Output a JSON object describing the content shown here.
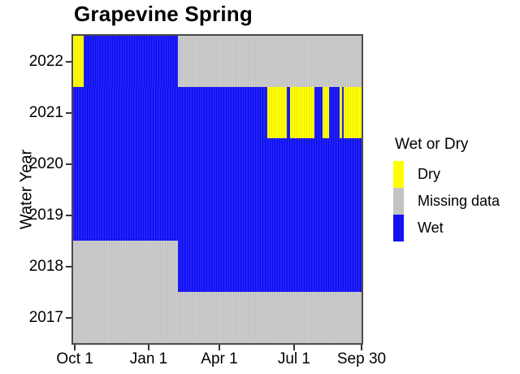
{
  "title": "Grapevine Spring",
  "y_axis": {
    "title": "Water Year",
    "ticks": [
      "2022",
      "2021",
      "2020",
      "2019",
      "2018",
      "2017"
    ]
  },
  "x_axis": {
    "ticks": [
      {
        "label": "Oct 1",
        "pos_pct": 0.6
      },
      {
        "label": "Jan 1",
        "pos_pct": 26.2
      },
      {
        "label": "Apr 1",
        "pos_pct": 50.7
      },
      {
        "label": "Jul 1",
        "pos_pct": 76.6
      },
      {
        "label": "Sep 30",
        "pos_pct": 100
      }
    ]
  },
  "legend": {
    "title": "Wet or Dry",
    "items": [
      {
        "label": "Dry",
        "color": "#FFFF00"
      },
      {
        "label": "Missing data",
        "color": "#C3C3C3"
      },
      {
        "label": "Wet",
        "color": "#1212F0"
      }
    ]
  },
  "chart_data": {
    "type": "heatmap",
    "title": "Grapevine Spring",
    "xlabel_ticks": [
      "Oct 1",
      "Jan 1",
      "Apr 1",
      "Jul 1",
      "Sep 30"
    ],
    "ylabel": "Water Year",
    "categories": [
      "2022",
      "2021",
      "2020",
      "2019",
      "2018",
      "2017"
    ],
    "legend_position": "right",
    "status_colors": {
      "Dry": "#FFFF00",
      "Missing data": "#C3C3C3",
      "Wet": "#1212F0"
    },
    "rows": [
      {
        "year": "2022",
        "segments": [
          {
            "status": "Dry",
            "from_pct": 0,
            "to_pct": 3.8,
            "approx_start": "Oct 1",
            "approx_end": "Oct 12"
          },
          {
            "status": "Wet",
            "from_pct": 3.8,
            "to_pct": 36.2,
            "approx_start": "Oct 12",
            "approx_end": "Feb 6"
          },
          {
            "status": "Missing data",
            "from_pct": 36.2,
            "to_pct": 100,
            "approx_start": "Feb 6",
            "approx_end": "Sep 30"
          }
        ]
      },
      {
        "year": "2021",
        "segments": [
          {
            "status": "Wet",
            "from_pct": 0,
            "to_pct": 67.2,
            "approx_start": "Oct 1",
            "approx_end": "May 29"
          },
          {
            "status": "Dry",
            "from_pct": 67.2,
            "to_pct": 74.2,
            "approx_start": "May 29",
            "approx_end": "Jun 25"
          },
          {
            "status": "Wet",
            "from_pct": 74.2,
            "to_pct": 75.1,
            "approx_start": "Jun 25",
            "approx_end": "Jun 28"
          },
          {
            "status": "Dry",
            "from_pct": 75.1,
            "to_pct": 83.6,
            "approx_start": "Jun 28",
            "approx_end": "Jul 29"
          },
          {
            "status": "Wet",
            "from_pct": 83.6,
            "to_pct": 86.4,
            "approx_start": "Jul 29",
            "approx_end": "Aug 8"
          },
          {
            "status": "Dry",
            "from_pct": 86.4,
            "to_pct": 88.6,
            "approx_start": "Aug 8",
            "approx_end": "Aug 17"
          },
          {
            "status": "Wet",
            "from_pct": 88.6,
            "to_pct": 92.5,
            "approx_start": "Aug 17",
            "approx_end": "Aug 31"
          },
          {
            "status": "Dry",
            "from_pct": 92.5,
            "to_pct": 93.3,
            "approx_start": "Aug 31",
            "approx_end": "Sep 3"
          },
          {
            "status": "Wet",
            "from_pct": 93.3,
            "to_pct": 93.7,
            "approx_start": "Sep 3",
            "approx_end": "Sep 4"
          },
          {
            "status": "Dry",
            "from_pct": 93.7,
            "to_pct": 100,
            "approx_start": "Sep 4",
            "approx_end": "Sep 30"
          }
        ]
      },
      {
        "year": "2020",
        "segments": [
          {
            "status": "Wet",
            "from_pct": 0,
            "to_pct": 100,
            "approx_start": "Oct 1",
            "approx_end": "Sep 30"
          }
        ]
      },
      {
        "year": "2019",
        "segments": [
          {
            "status": "Wet",
            "from_pct": 0,
            "to_pct": 100,
            "approx_start": "Oct 1",
            "approx_end": "Sep 30"
          }
        ]
      },
      {
        "year": "2018",
        "segments": [
          {
            "status": "Missing data",
            "from_pct": 0,
            "to_pct": 36.2,
            "approx_start": "Oct 1",
            "approx_end": "Feb 6"
          },
          {
            "status": "Wet",
            "from_pct": 36.2,
            "to_pct": 100,
            "approx_start": "Feb 6",
            "approx_end": "Sep 30"
          }
        ]
      },
      {
        "year": "2017",
        "segments": [
          {
            "status": "Missing data",
            "from_pct": 0,
            "to_pct": 100,
            "approx_start": "Oct 1",
            "approx_end": "Sep 30"
          }
        ]
      }
    ]
  }
}
